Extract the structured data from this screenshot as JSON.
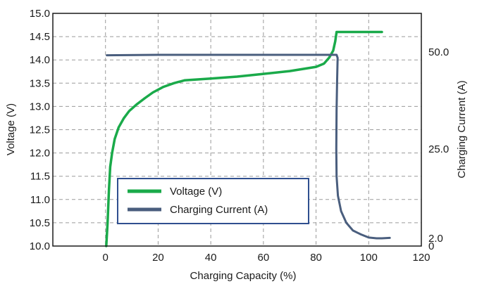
{
  "chart_data": {
    "type": "line",
    "xlabel": "Charging Capacity (%)",
    "ylabel_left": "Voltage (V)",
    "ylabel_right": "Charging Current (A)",
    "x_range": [
      -20,
      120
    ],
    "x_ticks": [
      0,
      20,
      40,
      60,
      80,
      100,
      120
    ],
    "y_left_range": [
      10.0,
      15.0
    ],
    "y_left_ticks": [
      "10.0",
      "10.5",
      "11.0",
      "11.5",
      "12.0",
      "12.5",
      "13.0",
      "13.5",
      "14.0",
      "14.5",
      "15.0"
    ],
    "y_right_range": [
      0,
      60
    ],
    "y_right_ticks": [
      {
        "label": "0",
        "value": 0
      },
      {
        "label": "2.0",
        "value": 2
      },
      {
        "label": "25.0",
        "value": 25
      },
      {
        "label": "50.0",
        "value": 50
      }
    ],
    "grid": true,
    "legend_position": "bottom-center",
    "colors": {
      "voltage": "#1aaa4a",
      "current": "#4a5e7e",
      "grid": "#9a9a9a",
      "legend_border": "#2f4f8f"
    },
    "series": [
      {
        "name": "Voltage (V)",
        "axis": "left",
        "points": [
          [
            0.3,
            10.0
          ],
          [
            0.8,
            10.5
          ],
          [
            1.3,
            11.2
          ],
          [
            1.8,
            11.7
          ],
          [
            2.5,
            12.0
          ],
          [
            3.5,
            12.3
          ],
          [
            5,
            12.55
          ],
          [
            7,
            12.75
          ],
          [
            9,
            12.9
          ],
          [
            12,
            13.05
          ],
          [
            15,
            13.18
          ],
          [
            18,
            13.3
          ],
          [
            22,
            13.42
          ],
          [
            26,
            13.5
          ],
          [
            30,
            13.56
          ],
          [
            40,
            13.6
          ],
          [
            50,
            13.64
          ],
          [
            60,
            13.7
          ],
          [
            70,
            13.76
          ],
          [
            80,
            13.85
          ],
          [
            83,
            13.92
          ],
          [
            85,
            14.05
          ],
          [
            86.5,
            14.2
          ],
          [
            87.3,
            14.4
          ],
          [
            87.8,
            14.6
          ],
          [
            95,
            14.6
          ],
          [
            100,
            14.6
          ],
          [
            105,
            14.6
          ]
        ]
      },
      {
        "name": "Charging Current (A)",
        "axis": "right",
        "points": [
          [
            0.5,
            49.2
          ],
          [
            20,
            49.3
          ],
          [
            40,
            49.3
          ],
          [
            60,
            49.3
          ],
          [
            80,
            49.3
          ],
          [
            87.8,
            49.3
          ],
          [
            88.2,
            48.5
          ],
          [
            88.0,
            43
          ],
          [
            87.8,
            35
          ],
          [
            87.7,
            25
          ],
          [
            87.8,
            18
          ],
          [
            88.3,
            13
          ],
          [
            89.5,
            9
          ],
          [
            91.5,
            6
          ],
          [
            94,
            4
          ],
          [
            97,
            3
          ],
          [
            100,
            2.2
          ],
          [
            103,
            2.0
          ],
          [
            105,
            2.0
          ],
          [
            108,
            2.1
          ]
        ]
      }
    ]
  }
}
